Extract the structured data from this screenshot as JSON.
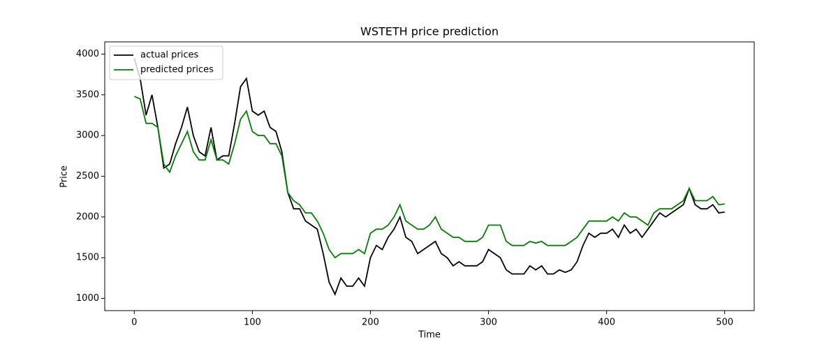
{
  "chart_data": {
    "type": "line",
    "title": "WSTETH price prediction",
    "x_label": "Time",
    "y_label": "Price",
    "x": [
      0,
      5,
      10,
      15,
      20,
      25,
      30,
      35,
      40,
      45,
      50,
      55,
      60,
      65,
      70,
      75,
      80,
      85,
      90,
      95,
      100,
      105,
      110,
      115,
      120,
      125,
      130,
      135,
      140,
      145,
      150,
      155,
      160,
      165,
      170,
      175,
      180,
      185,
      190,
      195,
      200,
      205,
      210,
      215,
      220,
      225,
      230,
      235,
      240,
      245,
      250,
      255,
      260,
      265,
      270,
      275,
      280,
      285,
      290,
      295,
      300,
      305,
      310,
      315,
      320,
      325,
      330,
      335,
      340,
      345,
      350,
      355,
      360,
      365,
      370,
      375,
      380,
      385,
      390,
      395,
      400,
      405,
      410,
      415,
      420,
      425,
      430,
      435,
      440,
      445,
      450,
      455,
      460,
      465,
      470,
      475,
      480,
      485,
      490,
      495,
      500
    ],
    "series": [
      {
        "name": "actual prices",
        "color": "#000000",
        "values": [
          3950,
          3700,
          3250,
          3500,
          3100,
          2600,
          2650,
          2900,
          3100,
          3350,
          3000,
          2800,
          2750,
          3100,
          2700,
          2750,
          2750,
          3150,
          3600,
          3700,
          3300,
          3250,
          3300,
          3100,
          3050,
          2800,
          2300,
          2100,
          2100,
          1950,
          1900,
          1850,
          1550,
          1200,
          1050,
          1250,
          1150,
          1150,
          1250,
          1150,
          1500,
          1650,
          1600,
          1750,
          1850,
          2000,
          1750,
          1700,
          1550,
          1600,
          1650,
          1700,
          1550,
          1500,
          1400,
          1450,
          1400,
          1400,
          1400,
          1450,
          1600,
          1550,
          1500,
          1350,
          1300,
          1300,
          1300,
          1400,
          1350,
          1400,
          1300,
          1300,
          1350,
          1320,
          1350,
          1450,
          1650,
          1800,
          1750,
          1800,
          1800,
          1850,
          1750,
          1900,
          1800,
          1850,
          1750,
          1850,
          1950,
          2050,
          2000,
          2050,
          2100,
          2150,
          2350,
          2150,
          2100,
          2100,
          2150,
          2050,
          2060
        ]
      },
      {
        "name": "predicted prices",
        "color": "#008000",
        "values": [
          3480,
          3450,
          3150,
          3150,
          3100,
          2650,
          2550,
          2750,
          2900,
          3050,
          2800,
          2700,
          2700,
          2950,
          2700,
          2700,
          2650,
          2900,
          3200,
          3300,
          3050,
          3000,
          3000,
          2900,
          2900,
          2750,
          2300,
          2200,
          2150,
          2050,
          2050,
          1950,
          1800,
          1600,
          1500,
          1550,
          1550,
          1550,
          1600,
          1550,
          1800,
          1850,
          1850,
          1900,
          2000,
          2150,
          1950,
          1900,
          1850,
          1850,
          1900,
          2000,
          1850,
          1800,
          1750,
          1750,
          1700,
          1700,
          1700,
          1750,
          1900,
          1900,
          1900,
          1700,
          1650,
          1650,
          1650,
          1700,
          1680,
          1700,
          1650,
          1650,
          1650,
          1650,
          1700,
          1750,
          1850,
          1950,
          1950,
          1950,
          1950,
          2000,
          1950,
          2050,
          2000,
          2000,
          1950,
          1900,
          2050,
          2100,
          2100,
          2100,
          2150,
          2200,
          2350,
          2200,
          2200,
          2200,
          2250,
          2150,
          2160
        ]
      }
    ],
    "xlim": [
      -25,
      525
    ],
    "ylim": [
      850,
      4150
    ],
    "xticks": [
      0,
      100,
      200,
      300,
      400,
      500
    ],
    "yticks": [
      1000,
      1500,
      2000,
      2500,
      3000,
      3500,
      4000
    ],
    "legend": "upper left"
  }
}
